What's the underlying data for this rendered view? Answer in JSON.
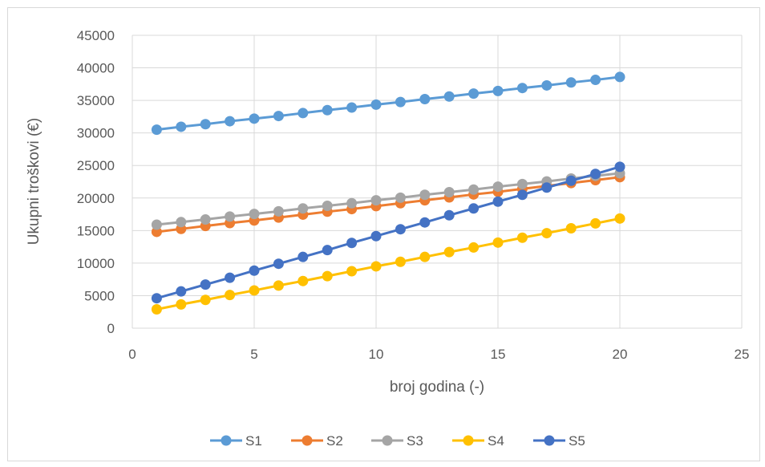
{
  "chart_data": {
    "type": "line",
    "title": "",
    "xlabel": "broj godina (-)",
    "ylabel": "Ukupni troškovi (€)",
    "xlim": [
      0,
      25
    ],
    "ylim": [
      0,
      45000
    ],
    "x_ticks": [
      0,
      5,
      10,
      15,
      20,
      25
    ],
    "y_ticks": [
      0,
      5000,
      10000,
      15000,
      20000,
      25000,
      30000,
      35000,
      40000,
      45000
    ],
    "grid": true,
    "legend_position": "bottom",
    "x": [
      1,
      2,
      3,
      4,
      5,
      6,
      7,
      8,
      9,
      10,
      11,
      12,
      13,
      14,
      15,
      16,
      17,
      18,
      19,
      20
    ],
    "series": [
      {
        "name": "S1",
        "color": "#5b9bd5",
        "values": [
          30500,
          30950,
          31350,
          31800,
          32200,
          32600,
          33050,
          33500,
          33900,
          34350,
          34750,
          35200,
          35600,
          36050,
          36450,
          36900,
          37300,
          37750,
          38150,
          38600
        ]
      },
      {
        "name": "S2",
        "color": "#ed7d31",
        "values": [
          14800,
          15250,
          15700,
          16150,
          16550,
          17000,
          17450,
          17900,
          18300,
          18750,
          19200,
          19650,
          20100,
          20550,
          20950,
          21400,
          21850,
          22300,
          22750,
          23200
        ]
      },
      {
        "name": "S3",
        "color": "#a5a5a5",
        "values": [
          15900,
          16300,
          16700,
          17150,
          17550,
          17950,
          18400,
          18800,
          19200,
          19650,
          20050,
          20500,
          20900,
          21300,
          21750,
          22150,
          22550,
          23000,
          23400,
          23800
        ]
      },
      {
        "name": "S4",
        "color": "#ffc000",
        "values": [
          2900,
          3650,
          4350,
          5100,
          5800,
          6550,
          7250,
          8000,
          8750,
          9500,
          10200,
          10950,
          11700,
          12400,
          13150,
          13900,
          14600,
          15350,
          16100,
          16850
        ]
      },
      {
        "name": "S5",
        "color": "#4472c4",
        "values": [
          4600,
          5650,
          6700,
          7750,
          8850,
          9900,
          10950,
          12000,
          13100,
          14150,
          15200,
          16250,
          17350,
          18400,
          19450,
          20500,
          21600,
          22650,
          23700,
          24800
        ]
      }
    ]
  }
}
